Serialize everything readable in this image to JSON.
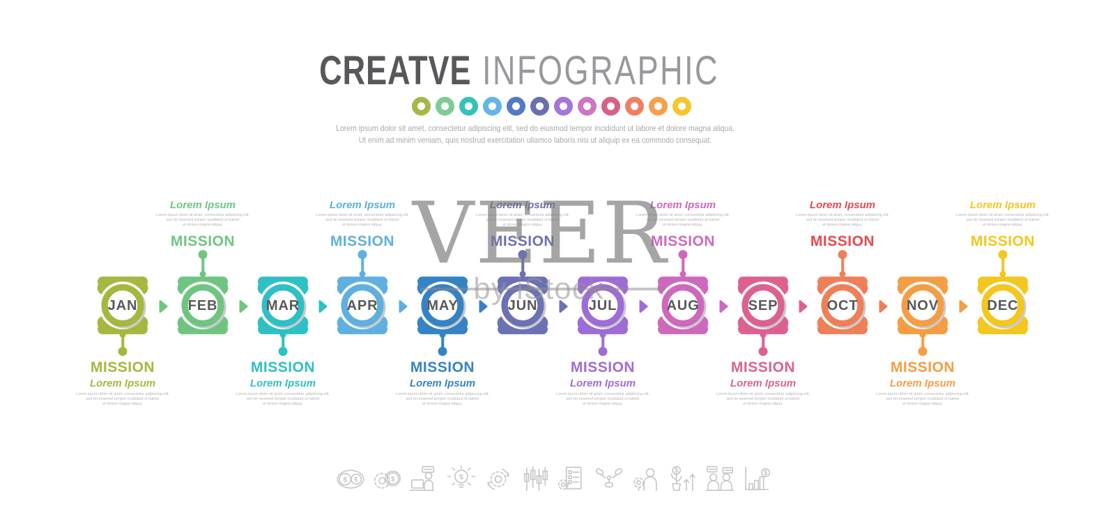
{
  "header": {
    "title_primary": "CREATVE",
    "title_secondary": "INFOGRAPHIC",
    "subtitle_line1": "Lorem ipsum dolor sit amet, consectetur adipiscing elit, sed do eiusmod tempor incididunt ut labore et dolore magna aliqua.",
    "subtitle_line2": "Ut enim ad minim veniam, quis nostrud exercitation ullamco laboris nisi ut aliquip ex ea commodo consequat.",
    "dot_colors": [
      "#a5b94a",
      "#7fcb93",
      "#35c2bb",
      "#64b5e8",
      "#5479c7",
      "#6a6fae",
      "#a376d8",
      "#cb77c3",
      "#d66286",
      "#ef7f62",
      "#f5a04c",
      "#f7c52c"
    ]
  },
  "timeline": {
    "mission_label": "MISSION",
    "mission_heading": "Lorem Ipsum",
    "mission_body_lines": [
      "Lorem ipsum dolor sit amet, consectetur adipiscing elit,",
      "sed do eiusmod tempor incididunt ut labore",
      "et dolore magna aliqua."
    ],
    "month_label_color": "#58585a",
    "months": [
      {
        "abbr": "JAN",
        "color": "#a6b73e",
        "text_color": "#a6b73e",
        "mission_position": "below"
      },
      {
        "abbr": "FEB",
        "color": "#6fc580",
        "text_color": "#6fc580",
        "mission_position": "above"
      },
      {
        "abbr": "MAR",
        "color": "#2ec0c4",
        "text_color": "#2ec0c4",
        "mission_position": "below"
      },
      {
        "abbr": "APR",
        "color": "#5fafe0",
        "text_color": "#5fafe0",
        "mission_position": "above"
      },
      {
        "abbr": "MAY",
        "color": "#3583c5",
        "text_color": "#3583c5",
        "mission_position": "below"
      },
      {
        "abbr": "JUN",
        "color": "#6a71b5",
        "text_color": "#6a71b5",
        "mission_position": "above"
      },
      {
        "abbr": "JUL",
        "color": "#9e6cd6",
        "text_color": "#9e6cd6",
        "mission_position": "below"
      },
      {
        "abbr": "AUG",
        "color": "#cf68bd",
        "text_color": "#cf68bd",
        "mission_position": "above"
      },
      {
        "abbr": "SEP",
        "color": "#dd6190",
        "text_color": "#dd6190",
        "mission_position": "below"
      },
      {
        "abbr": "OCT",
        "color": "#ef7f58",
        "text_color": "#e8494c",
        "mission_position": "above"
      },
      {
        "abbr": "NOV",
        "color": "#f49d44",
        "text_color": "#f49d44",
        "mission_position": "below"
      },
      {
        "abbr": "DEC",
        "color": "#f4c61e",
        "text_color": "#f4c61e",
        "mission_position": "above"
      }
    ],
    "arrow_colors": [
      "#6fc580",
      "#6fc580",
      "#2ec0c4",
      "#5fafe0",
      "#3583c5",
      "#6a71b5",
      "#9e6cd6",
      "#cf68bd",
      "#dd6190",
      "#ef7f58",
      "#f49d44"
    ]
  },
  "watermark": {
    "brand": "VEER",
    "byline": "by iStock"
  },
  "footer_icons": [
    "currency-exchange-icon",
    "gear-dollar-icon",
    "online-support-icon",
    "idea-dollar-icon",
    "gear-process-icon",
    "candlestick-chart-icon",
    "gear-checklist-icon",
    "teamwork-hands-icon",
    "person-gear-icon",
    "money-growth-icon",
    "business-talk-icon",
    "profit-chart-icon"
  ]
}
